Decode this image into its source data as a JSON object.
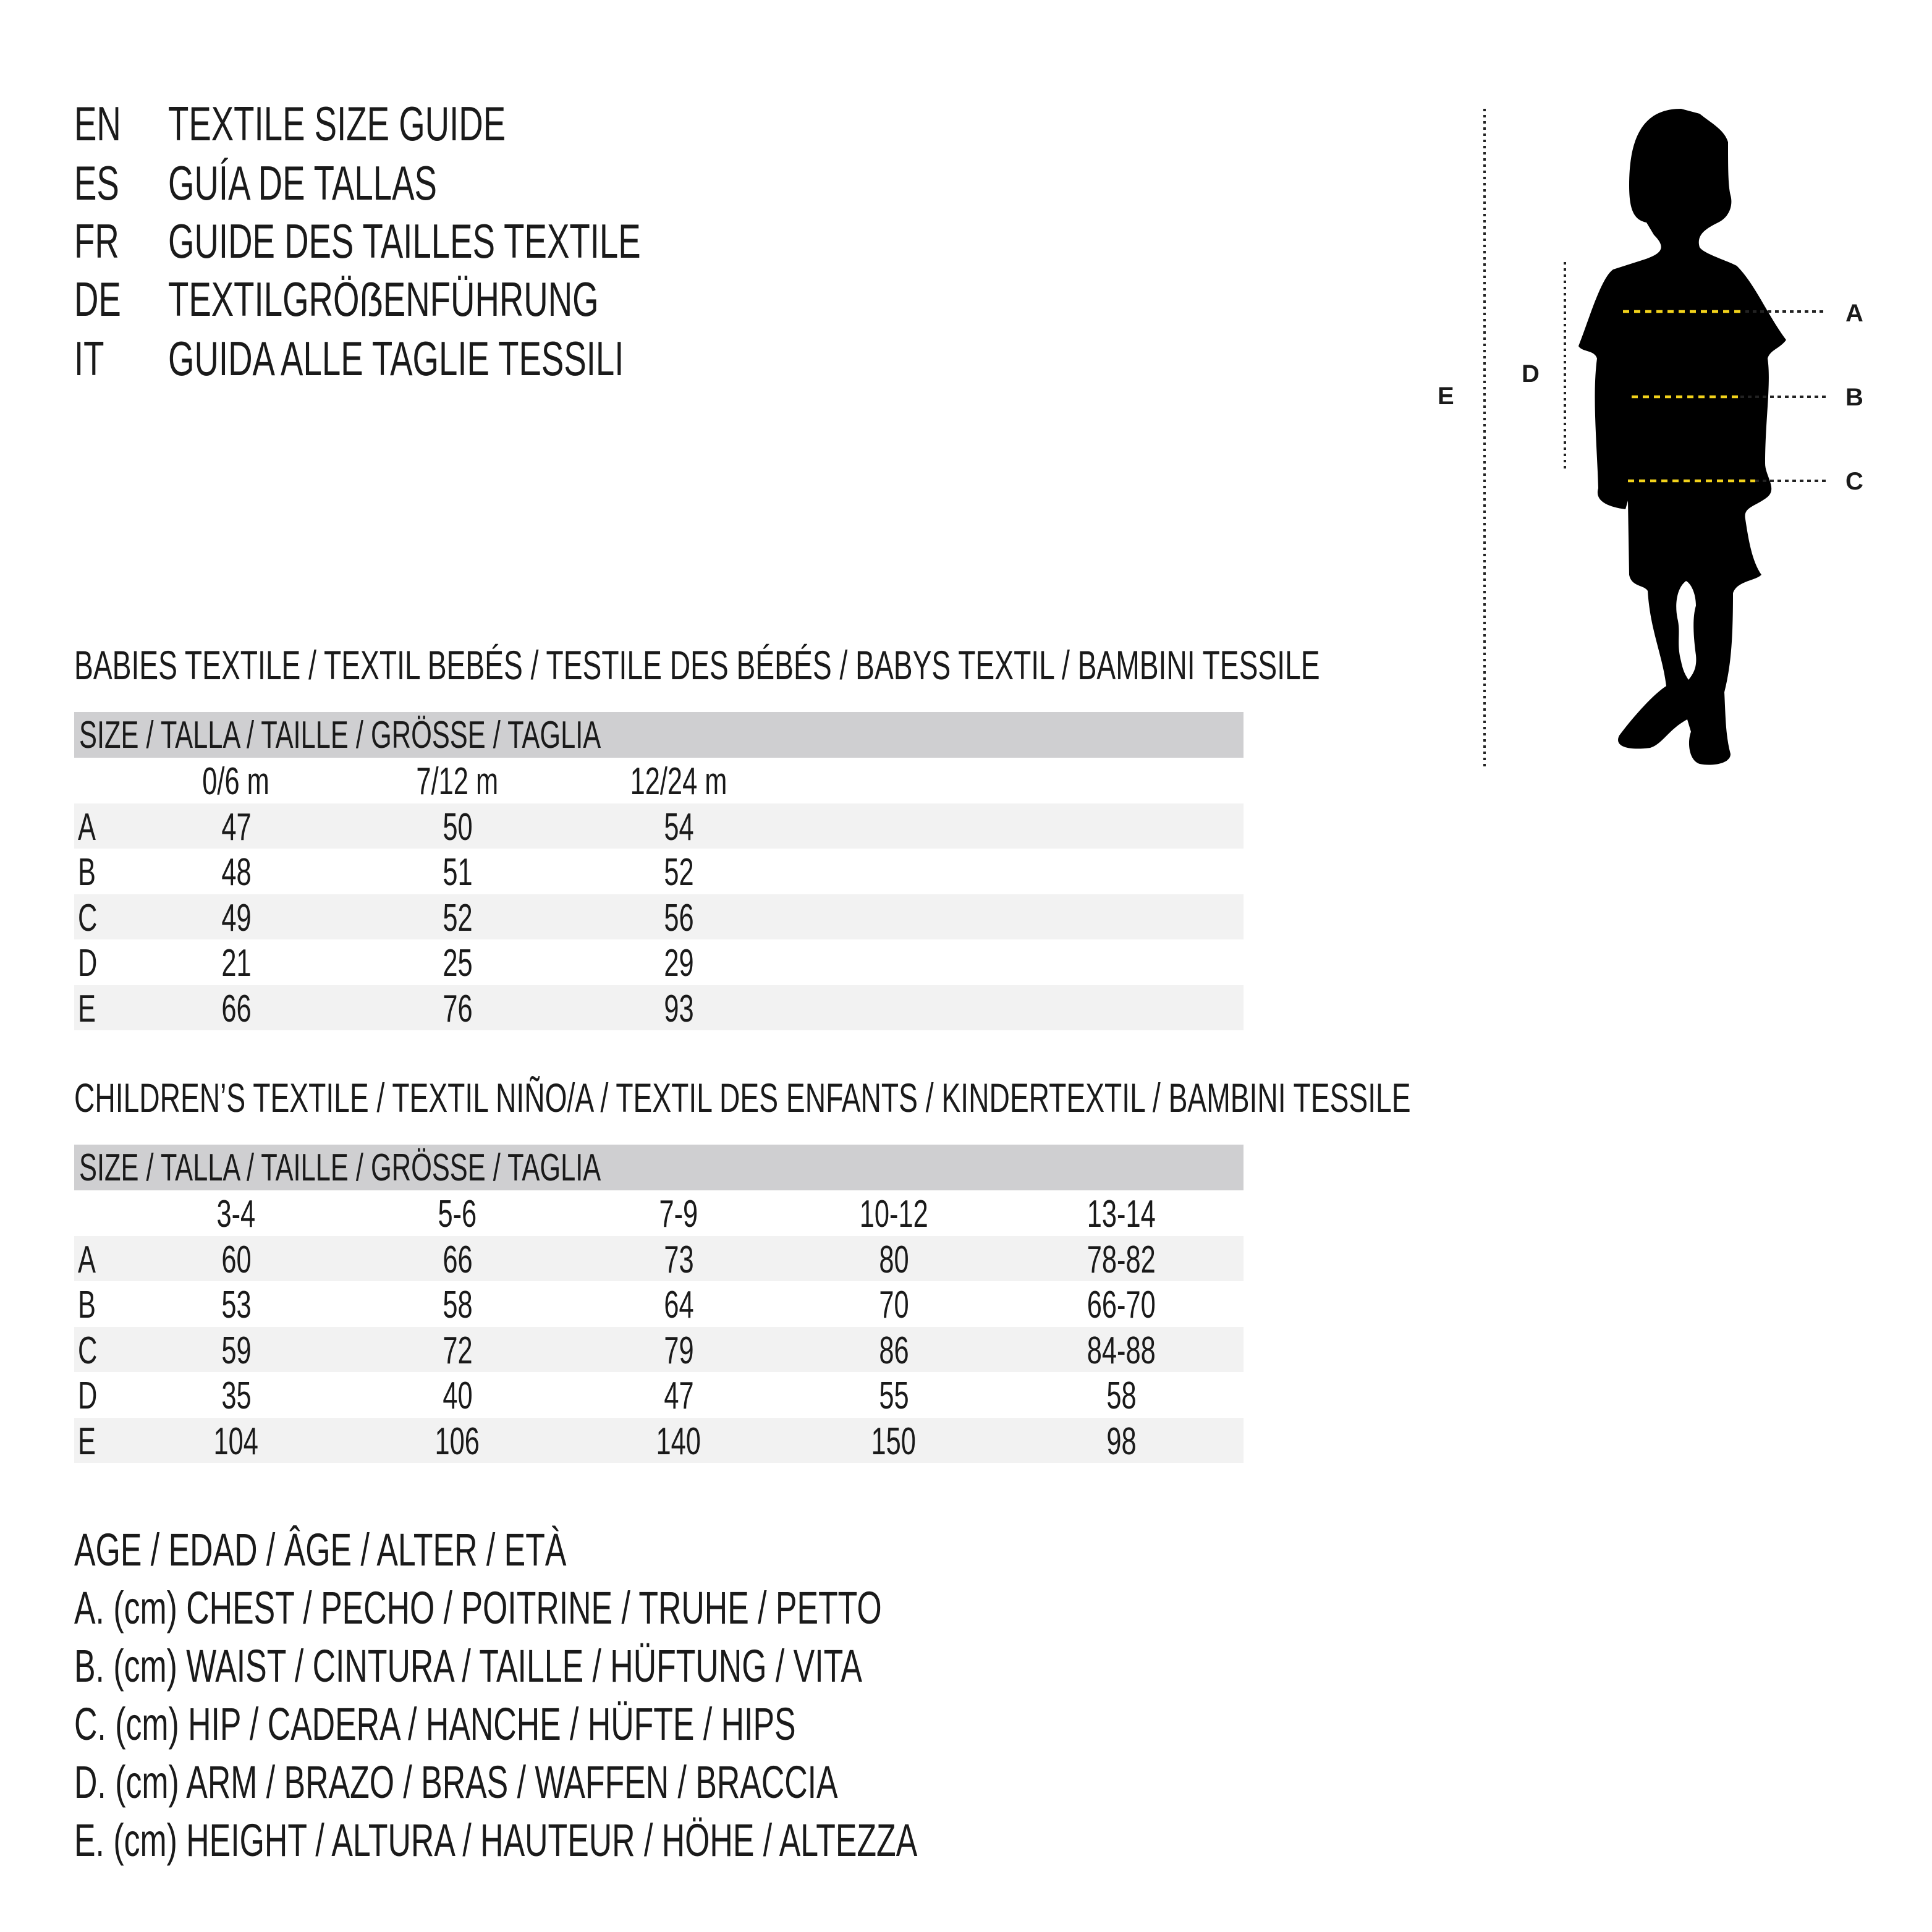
{
  "titles": [
    {
      "lang": "EN",
      "text": "TEXTILE SIZE GUIDE"
    },
    {
      "lang": "ES",
      "text": "GUÍA DE TALLAS"
    },
    {
      "lang": "FR",
      "text": "GUIDE DES TAILLES TEXTILE"
    },
    {
      "lang": "DE",
      "text": "TEXTILGRÖẞENFÜHRUNG"
    },
    {
      "lang": "IT",
      "text": "GUIDA ALLE TAGLIE TESSILI"
    }
  ],
  "babies": {
    "title": "BABIES TEXTILE / TEXTIL BEBÉS / TESTILE DES BÉBÉS / BABYS TEXTIL / BAMBINI TESSILE",
    "size_header": "SIZE / TALLA / TAILLE / GRÖSSE / TAGLIA",
    "columns": [
      "0/6 m",
      "7/12 m",
      "12/24 m"
    ],
    "rows": [
      {
        "label": "A",
        "values": [
          "47",
          "50",
          "54"
        ]
      },
      {
        "label": "B",
        "values": [
          "48",
          "51",
          "52"
        ]
      },
      {
        "label": "C",
        "values": [
          "49",
          "52",
          "56"
        ]
      },
      {
        "label": "D",
        "values": [
          "21",
          "25",
          "29"
        ]
      },
      {
        "label": "E",
        "values": [
          "66",
          "76",
          "93"
        ]
      }
    ]
  },
  "children": {
    "title": "CHILDREN’S TEXTILE / TEXTIL NIÑO/A / TEXTIL DES ENFANTS / KINDERTEXTIL / BAMBINI TESSILE",
    "size_header": "SIZE / TALLA / TAILLE / GRÖSSE / TAGLIA",
    "columns": [
      "3-4",
      "5-6",
      "7-9",
      "10-12",
      "13-14"
    ],
    "rows": [
      {
        "label": "A",
        "values": [
          "60",
          "66",
          "73",
          "80",
          "78-82"
        ]
      },
      {
        "label": "B",
        "values": [
          "53",
          "58",
          "64",
          "70",
          "66-70"
        ]
      },
      {
        "label": "C",
        "values": [
          "59",
          "72",
          "79",
          "86",
          "84-88"
        ]
      },
      {
        "label": "D",
        "values": [
          "35",
          "40",
          "47",
          "55",
          "58"
        ]
      },
      {
        "label": "E",
        "values": [
          "104",
          "106",
          "140",
          "150",
          "98"
        ]
      }
    ]
  },
  "legend": [
    "AGE / EDAD / ÂGE / ALTER / ETÀ",
    "A. (cm) CHEST / PECHO / POITRINE / TRUHE / PETTO",
    "B. (cm) WAIST / CINTURA / TAILLE / HÜFTUNG / VITA",
    "C. (cm) HIP / CADERA / HANCHE / HÜFTE / HIPS",
    "D. (cm) ARM / BRAZO / BRAS / WAFFEN / BRACCIA",
    "E. (cm) HEIGHT / ALTURA / HAUTEUR / HÖHE / ALTEZZA"
  ],
  "figure": {
    "labels": {
      "A": "A",
      "B": "B",
      "C": "C",
      "D": "D",
      "E": "E"
    },
    "icon": "child-silhouette-icon",
    "colors": {
      "measure_line": "#f2d21b",
      "guide_line": "#222222",
      "silhouette": "#000000",
      "table_header": "#cfcfd1",
      "row_shade": "#f2f2f2"
    }
  }
}
